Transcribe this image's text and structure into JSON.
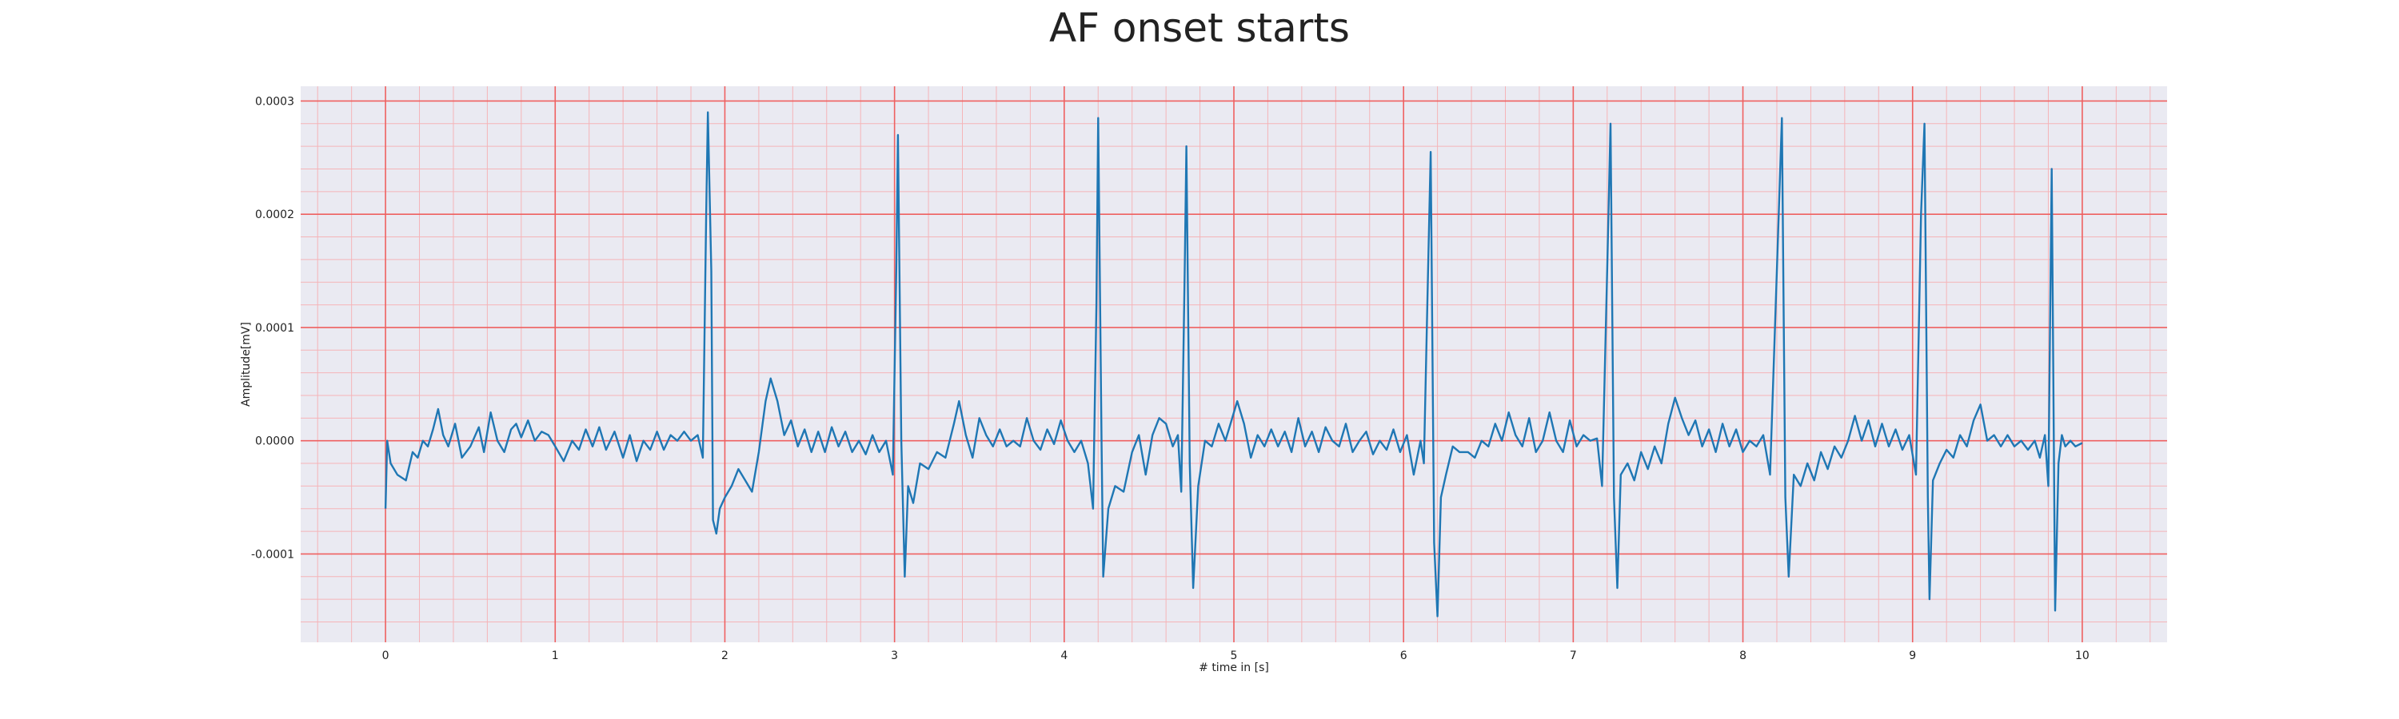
{
  "chart_data": {
    "type": "line",
    "title": "AF onset starts",
    "xlabel": "# time in [s]",
    "ylabel": "Amplitude[mV]",
    "xlim": [
      -0.5,
      10.5
    ],
    "ylim": [
      -0.000178,
      0.000313
    ],
    "x_ticks": [
      "0",
      "1",
      "2",
      "3",
      "4",
      "5",
      "6",
      "7",
      "8",
      "9",
      "10"
    ],
    "y_ticks": [
      "-0.0001",
      "0.0000",
      "0.0001",
      "0.0002",
      "0.0003"
    ],
    "grid": "major and minor, red",
    "colors": {
      "line": "#1f77b4",
      "plot_background": "#eaeaf2",
      "major_grid": "#ef6060",
      "minor_grid": "#f5b4b8"
    },
    "series": [
      {
        "values": [
          [
            0.0,
            -6e-05
          ],
          [
            0.01,
            0.0
          ],
          [
            0.03,
            -2e-05
          ],
          [
            0.07,
            -3e-05
          ],
          [
            0.12,
            -3.5e-05
          ],
          [
            0.16,
            -1e-05
          ],
          [
            0.19,
            -1.5e-05
          ],
          [
            0.22,
            0.0
          ],
          [
            0.25,
            -5e-06
          ],
          [
            0.28,
            1e-05
          ],
          [
            0.31,
            2.8e-05
          ],
          [
            0.34,
            5e-06
          ],
          [
            0.37,
            -5e-06
          ],
          [
            0.41,
            1.5e-05
          ],
          [
            0.45,
            -1.5e-05
          ],
          [
            0.5,
            -5e-06
          ],
          [
            0.55,
            1.2e-05
          ],
          [
            0.58,
            -1e-05
          ],
          [
            0.62,
            2.5e-05
          ],
          [
            0.66,
            0.0
          ],
          [
            0.7,
            -1e-05
          ],
          [
            0.74,
            1e-05
          ],
          [
            0.77,
            1.5e-05
          ],
          [
            0.8,
            3e-06
          ],
          [
            0.84,
            1.8e-05
          ],
          [
            0.88,
            0.0
          ],
          [
            0.92,
            8e-06
          ],
          [
            0.96,
            5e-06
          ],
          [
            1.0,
            -5e-06
          ],
          [
            1.05,
            -1.8e-05
          ],
          [
            1.1,
            0.0
          ],
          [
            1.14,
            -8e-06
          ],
          [
            1.18,
            1e-05
          ],
          [
            1.22,
            -5e-06
          ],
          [
            1.26,
            1.2e-05
          ],
          [
            1.3,
            -8e-06
          ],
          [
            1.35,
            8e-06
          ],
          [
            1.4,
            -1.5e-05
          ],
          [
            1.44,
            5e-06
          ],
          [
            1.48,
            -1.8e-05
          ],
          [
            1.52,
            0.0
          ],
          [
            1.56,
            -8e-06
          ],
          [
            1.6,
            8e-06
          ],
          [
            1.64,
            -8e-06
          ],
          [
            1.68,
            5e-06
          ],
          [
            1.72,
            0.0
          ],
          [
            1.76,
            8e-06
          ],
          [
            1.8,
            0.0
          ],
          [
            1.84,
            5e-06
          ],
          [
            1.87,
            -1.5e-05
          ],
          [
            1.89,
            0.0002
          ],
          [
            1.9,
            0.00029
          ],
          [
            1.92,
            0.00015
          ],
          [
            1.93,
            -7e-05
          ],
          [
            1.95,
            -8.2e-05
          ],
          [
            1.97,
            -6e-05
          ],
          [
            2.0,
            -5e-05
          ],
          [
            2.04,
            -4e-05
          ],
          [
            2.08,
            -2.5e-05
          ],
          [
            2.12,
            -3.5e-05
          ],
          [
            2.16,
            -4.5e-05
          ],
          [
            2.2,
            -1e-05
          ],
          [
            2.24,
            3.5e-05
          ],
          [
            2.27,
            5.5e-05
          ],
          [
            2.31,
            3.5e-05
          ],
          [
            2.35,
            5e-06
          ],
          [
            2.39,
            1.8e-05
          ],
          [
            2.43,
            -5e-06
          ],
          [
            2.47,
            1e-05
          ],
          [
            2.51,
            -1e-05
          ],
          [
            2.55,
            8e-06
          ],
          [
            2.59,
            -1e-05
          ],
          [
            2.63,
            1.2e-05
          ],
          [
            2.67,
            -5e-06
          ],
          [
            2.71,
            8e-06
          ],
          [
            2.75,
            -1e-05
          ],
          [
            2.79,
            0.0
          ],
          [
            2.83,
            -1.2e-05
          ],
          [
            2.87,
            5e-06
          ],
          [
            2.91,
            -1e-05
          ],
          [
            2.95,
            0.0
          ],
          [
            2.99,
            -3e-05
          ],
          [
            3.01,
            0.00015
          ],
          [
            3.02,
            0.00027
          ],
          [
            3.04,
            0.0
          ],
          [
            3.06,
            -0.00012
          ],
          [
            3.08,
            -4e-05
          ],
          [
            3.11,
            -5.5e-05
          ],
          [
            3.15,
            -2e-05
          ],
          [
            3.2,
            -2.5e-05
          ],
          [
            3.25,
            -1e-05
          ],
          [
            3.3,
            -1.5e-05
          ],
          [
            3.35,
            1.5e-05
          ],
          [
            3.38,
            3.5e-05
          ],
          [
            3.42,
            5e-06
          ],
          [
            3.46,
            -1.5e-05
          ],
          [
            3.5,
            2e-05
          ],
          [
            3.54,
            5e-06
          ],
          [
            3.58,
            -5e-06
          ],
          [
            3.62,
            1e-05
          ],
          [
            3.66,
            -5e-06
          ],
          [
            3.7,
            0.0
          ],
          [
            3.74,
            -5e-06
          ],
          [
            3.78,
            2e-05
          ],
          [
            3.82,
            0.0
          ],
          [
            3.86,
            -8e-06
          ],
          [
            3.9,
            1e-05
          ],
          [
            3.94,
            -3e-06
          ],
          [
            3.98,
            1.8e-05
          ],
          [
            4.02,
            0.0
          ],
          [
            4.06,
            -1e-05
          ],
          [
            4.1,
            0.0
          ],
          [
            4.14,
            -2e-05
          ],
          [
            4.17,
            -6e-05
          ],
          [
            4.19,
            0.00012
          ],
          [
            4.2,
            0.000285
          ],
          [
            4.22,
            0.0
          ],
          [
            4.23,
            -0.00012
          ],
          [
            4.26,
            -6e-05
          ],
          [
            4.3,
            -4e-05
          ],
          [
            4.35,
            -4.5e-05
          ],
          [
            4.4,
            -1e-05
          ],
          [
            4.44,
            5e-06
          ],
          [
            4.48,
            -3e-05
          ],
          [
            4.52,
            5e-06
          ],
          [
            4.56,
            2e-05
          ],
          [
            4.6,
            1.5e-05
          ],
          [
            4.64,
            -5e-06
          ],
          [
            4.67,
            5e-06
          ],
          [
            4.69,
            -4.5e-05
          ],
          [
            4.71,
            0.00015
          ],
          [
            4.72,
            0.00026
          ],
          [
            4.74,
            -2e-05
          ],
          [
            4.76,
            -0.00013
          ],
          [
            4.79,
            -4e-05
          ],
          [
            4.83,
            0.0
          ],
          [
            4.87,
            -5e-06
          ],
          [
            4.91,
            1.5e-05
          ],
          [
            4.95,
            0.0
          ],
          [
            4.98,
            1.5e-05
          ],
          [
            5.02,
            3.5e-05
          ],
          [
            5.06,
            1.5e-05
          ],
          [
            5.1,
            -1.5e-05
          ],
          [
            5.14,
            5e-06
          ],
          [
            5.18,
            -5e-06
          ],
          [
            5.22,
            1e-05
          ],
          [
            5.26,
            -5e-06
          ],
          [
            5.3,
            8e-06
          ],
          [
            5.34,
            -1e-05
          ],
          [
            5.38,
            2e-05
          ],
          [
            5.42,
            -5e-06
          ],
          [
            5.46,
            8e-06
          ],
          [
            5.5,
            -1e-05
          ],
          [
            5.54,
            1.2e-05
          ],
          [
            5.58,
            0.0
          ],
          [
            5.62,
            -5e-06
          ],
          [
            5.66,
            1.5e-05
          ],
          [
            5.7,
            -1e-05
          ],
          [
            5.74,
            0.0
          ],
          [
            5.78,
            8e-06
          ],
          [
            5.82,
            -1.2e-05
          ],
          [
            5.86,
            0.0
          ],
          [
            5.9,
            -8e-06
          ],
          [
            5.94,
            1e-05
          ],
          [
            5.98,
            -1e-05
          ],
          [
            6.02,
            5e-06
          ],
          [
            6.06,
            -3e-05
          ],
          [
            6.1,
            0.0
          ],
          [
            6.12,
            -2e-05
          ],
          [
            6.14,
            0.00012
          ],
          [
            6.16,
            0.000255
          ],
          [
            6.17,
            8e-05
          ],
          [
            6.18,
            -9e-05
          ],
          [
            6.2,
            -0.000155
          ],
          [
            6.22,
            -5e-05
          ],
          [
            6.25,
            -3e-05
          ],
          [
            6.29,
            -5e-06
          ],
          [
            6.33,
            -1e-05
          ],
          [
            6.38,
            -1e-05
          ],
          [
            6.42,
            -1.5e-05
          ],
          [
            6.46,
            0.0
          ],
          [
            6.5,
            -5e-06
          ],
          [
            6.54,
            1.5e-05
          ],
          [
            6.58,
            0.0
          ],
          [
            6.62,
            2.5e-05
          ],
          [
            6.66,
            5e-06
          ],
          [
            6.7,
            -5e-06
          ],
          [
            6.74,
            2e-05
          ],
          [
            6.78,
            -1e-05
          ],
          [
            6.82,
            0.0
          ],
          [
            6.86,
            2.5e-05
          ],
          [
            6.9,
            0.0
          ],
          [
            6.94,
            -1e-05
          ],
          [
            6.98,
            1.8e-05
          ],
          [
            7.02,
            -5e-06
          ],
          [
            7.06,
            5e-06
          ],
          [
            7.1,
            0.0
          ],
          [
            7.14,
            2e-06
          ],
          [
            7.17,
            -4e-05
          ],
          [
            7.2,
            0.00015
          ],
          [
            7.22,
            0.00028
          ],
          [
            7.24,
            -5e-05
          ],
          [
            7.26,
            -0.00013
          ],
          [
            7.28,
            -3e-05
          ],
          [
            7.32,
            -2e-05
          ],
          [
            7.36,
            -3.5e-05
          ],
          [
            7.4,
            -1e-05
          ],
          [
            7.44,
            -2.5e-05
          ],
          [
            7.48,
            -5e-06
          ],
          [
            7.52,
            -2e-05
          ],
          [
            7.56,
            1.5e-05
          ],
          [
            7.6,
            3.8e-05
          ],
          [
            7.64,
            2e-05
          ],
          [
            7.68,
            5e-06
          ],
          [
            7.72,
            1.8e-05
          ],
          [
            7.76,
            -5e-06
          ],
          [
            7.8,
            1e-05
          ],
          [
            7.84,
            -1e-05
          ],
          [
            7.88,
            1.5e-05
          ],
          [
            7.92,
            -5e-06
          ],
          [
            7.96,
            1e-05
          ],
          [
            8.0,
            -1e-05
          ],
          [
            8.04,
            0.0
          ],
          [
            8.08,
            -5e-06
          ],
          [
            8.12,
            5e-06
          ],
          [
            8.16,
            -3e-05
          ],
          [
            8.2,
            0.00015
          ],
          [
            8.23,
            0.000285
          ],
          [
            8.25,
            -5e-05
          ],
          [
            8.27,
            -0.00012
          ],
          [
            8.3,
            -3e-05
          ],
          [
            8.34,
            -4e-05
          ],
          [
            8.38,
            -2e-05
          ],
          [
            8.42,
            -3.5e-05
          ],
          [
            8.46,
            -1e-05
          ],
          [
            8.5,
            -2.5e-05
          ],
          [
            8.54,
            -5e-06
          ],
          [
            8.58,
            -1.5e-05
          ],
          [
            8.62,
            0.0
          ],
          [
            8.66,
            2.2e-05
          ],
          [
            8.7,
            0.0
          ],
          [
            8.74,
            1.8e-05
          ],
          [
            8.78,
            -5e-06
          ],
          [
            8.82,
            1.5e-05
          ],
          [
            8.86,
            -5e-06
          ],
          [
            8.9,
            1e-05
          ],
          [
            8.94,
            -8e-06
          ],
          [
            8.98,
            5e-06
          ],
          [
            9.02,
            -3e-05
          ],
          [
            9.05,
            0.0002
          ],
          [
            9.07,
            0.00028
          ],
          [
            9.09,
            -5e-05
          ],
          [
            9.1,
            -0.00014
          ],
          [
            9.12,
            -3.5e-05
          ],
          [
            9.16,
            -2e-05
          ],
          [
            9.2,
            -8e-06
          ],
          [
            9.24,
            -1.5e-05
          ],
          [
            9.28,
            5e-06
          ],
          [
            9.32,
            -5e-06
          ],
          [
            9.36,
            1.8e-05
          ],
          [
            9.4,
            3.2e-05
          ],
          [
            9.44,
            0.0
          ],
          [
            9.48,
            5e-06
          ],
          [
            9.52,
            -5e-06
          ],
          [
            9.56,
            5e-06
          ],
          [
            9.6,
            -5e-06
          ],
          [
            9.64,
            0.0
          ],
          [
            9.68,
            -8e-06
          ],
          [
            9.72,
            0.0
          ],
          [
            9.75,
            -1.5e-05
          ],
          [
            9.78,
            5e-06
          ],
          [
            9.8,
            -4e-05
          ],
          [
            9.82,
            0.00024
          ],
          [
            9.84,
            -0.00015
          ],
          [
            9.86,
            -2e-05
          ],
          [
            9.88,
            5e-06
          ],
          [
            9.9,
            -5e-06
          ],
          [
            9.93,
            0.0
          ],
          [
            9.96,
            -5e-06
          ],
          [
            10.0,
            -2e-06
          ]
        ]
      }
    ]
  }
}
